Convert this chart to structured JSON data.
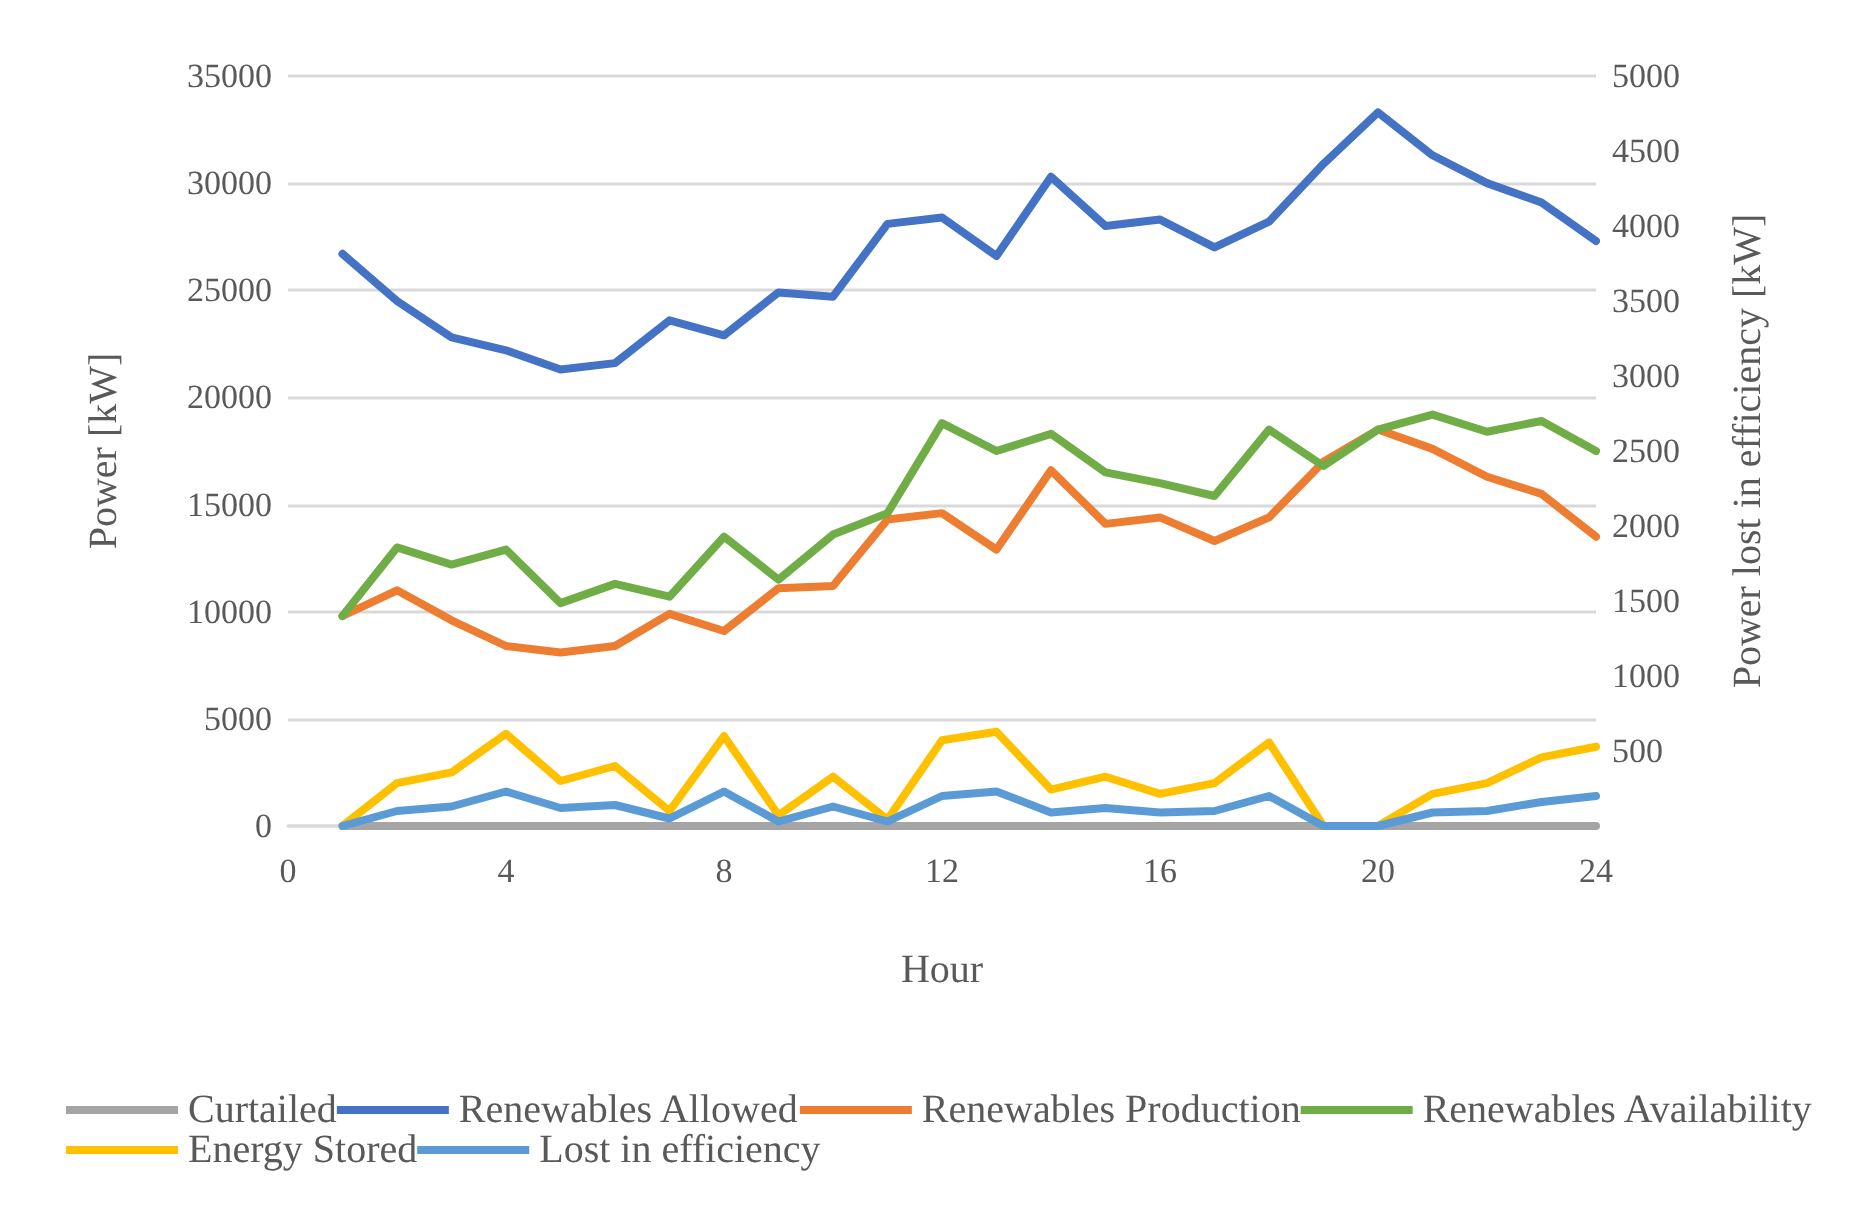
{
  "chart_data": {
    "type": "line",
    "xlabel": "Hour",
    "ylabel": "Power [kW]",
    "y2label": "Power lost in efficiency [kW]",
    "x": [
      1,
      2,
      3,
      4,
      5,
      6,
      7,
      8,
      9,
      10,
      11,
      12,
      13,
      14,
      15,
      16,
      17,
      18,
      19,
      20,
      21,
      22,
      23,
      24
    ],
    "xlim": [
      0,
      24
    ],
    "xticks": [
      0,
      4,
      8,
      12,
      16,
      20,
      24
    ],
    "ylim": [
      0,
      35000
    ],
    "yticks": [
      0,
      5000,
      10000,
      15000,
      20000,
      25000,
      30000,
      35000
    ],
    "y2lim": [
      0,
      5000
    ],
    "y2ticks": [
      500,
      1000,
      1500,
      2000,
      2500,
      3000,
      3500,
      4000,
      4500,
      5000
    ],
    "grid": "y",
    "legend": "bottom",
    "marker": "none",
    "line_style": "solid",
    "series": [
      {
        "name": "Curtailed",
        "color": "#a5a5a5",
        "values": [
          0,
          0,
          0,
          0,
          0,
          0,
          0,
          0,
          0,
          0,
          0,
          0,
          0,
          0,
          0,
          0,
          0,
          0,
          0,
          0,
          0,
          0,
          0,
          0
        ]
      },
      {
        "name": "Renewables Allowed",
        "color": "#4472c4",
        "values": [
          26700,
          24500,
          22800,
          22200,
          21300,
          21600,
          23600,
          22900,
          24900,
          24700,
          28100,
          28400,
          26600,
          30300,
          28000,
          28300,
          27000,
          28200,
          30900,
          33300,
          31300,
          30000,
          29100,
          27300
        ]
      },
      {
        "name": "Renewables Production",
        "color": "#ed7d31",
        "values": [
          9800,
          11000,
          9600,
          8400,
          8100,
          8400,
          9900,
          9100,
          11100,
          11200,
          14300,
          14600,
          12900,
          16600,
          14100,
          14400,
          13300,
          14400,
          17000,
          18500,
          17600,
          16300,
          15500,
          13500
        ]
      },
      {
        "name": "Renewables Availability",
        "color": "#70ad47",
        "values": [
          9800,
          13000,
          12200,
          12900,
          10400,
          11300,
          10700,
          13500,
          11500,
          13600,
          14600,
          18800,
          17500,
          18300,
          16500,
          16000,
          15400,
          18500,
          16800,
          18500,
          19200,
          18400,
          18900,
          17500
        ]
      },
      {
        "name": "Energy Stored",
        "color": "#ffc000",
        "values": [
          0,
          2000,
          2500,
          4300,
          2100,
          2800,
          700,
          4200,
          500,
          2300,
          300,
          4000,
          4400,
          1700,
          2300,
          1500,
          2000,
          3900,
          0,
          0,
          1500,
          2000,
          3200,
          3700
        ]
      },
      {
        "name": "Lost in efficiency",
        "color": "#5b9bd5",
        "axis": "y2",
        "values": [
          0,
          100,
          130,
          230,
          120,
          140,
          50,
          230,
          30,
          130,
          30,
          200,
          230,
          90,
          120,
          90,
          100,
          200,
          0,
          0,
          90,
          100,
          160,
          200
        ]
      }
    ]
  }
}
